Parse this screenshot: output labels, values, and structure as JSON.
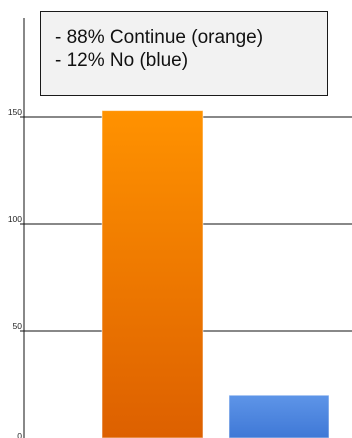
{
  "colors": {
    "orange_top": "#ff9200",
    "orange_bottom": "#dd6000",
    "blue_top": "#5e95e8",
    "blue_bottom": "#3f78d6",
    "axis": "#111111"
  },
  "legend": {
    "lines": [
      "- 88% Continue (orange)",
      "- 12% No (blue)"
    ]
  },
  "chart_data": {
    "type": "bar",
    "categories": [
      "Continue",
      "No"
    ],
    "values": [
      153,
      20
    ],
    "bar_colors": [
      "orange",
      "blue"
    ],
    "yticks": [
      0,
      50,
      100,
      150
    ],
    "ylim": [
      0,
      180
    ],
    "grid": true,
    "legend_position": "top"
  }
}
